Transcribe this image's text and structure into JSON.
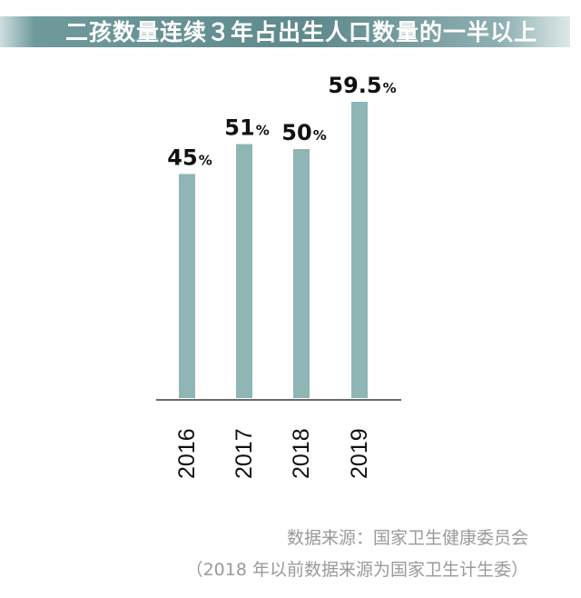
{
  "title": "二孩数量连续３年占出生人口数量的一半以上",
  "chart_data": {
    "type": "bar",
    "categories": [
      "2016",
      "2017",
      "2018",
      "2019"
    ],
    "values": [
      45,
      51,
      50,
      59.5
    ],
    "value_labels": [
      "45",
      "51",
      "50",
      "59.5"
    ],
    "value_unit": "%",
    "bar_color": "#8fb5b5",
    "ylim": [
      0,
      59.5
    ],
    "grid": false,
    "legend": "none"
  },
  "source": {
    "line1": "数据来源：国家卫生健康委员会",
    "line2": "（2018 年以前数据来源为国家卫生计生委）"
  }
}
